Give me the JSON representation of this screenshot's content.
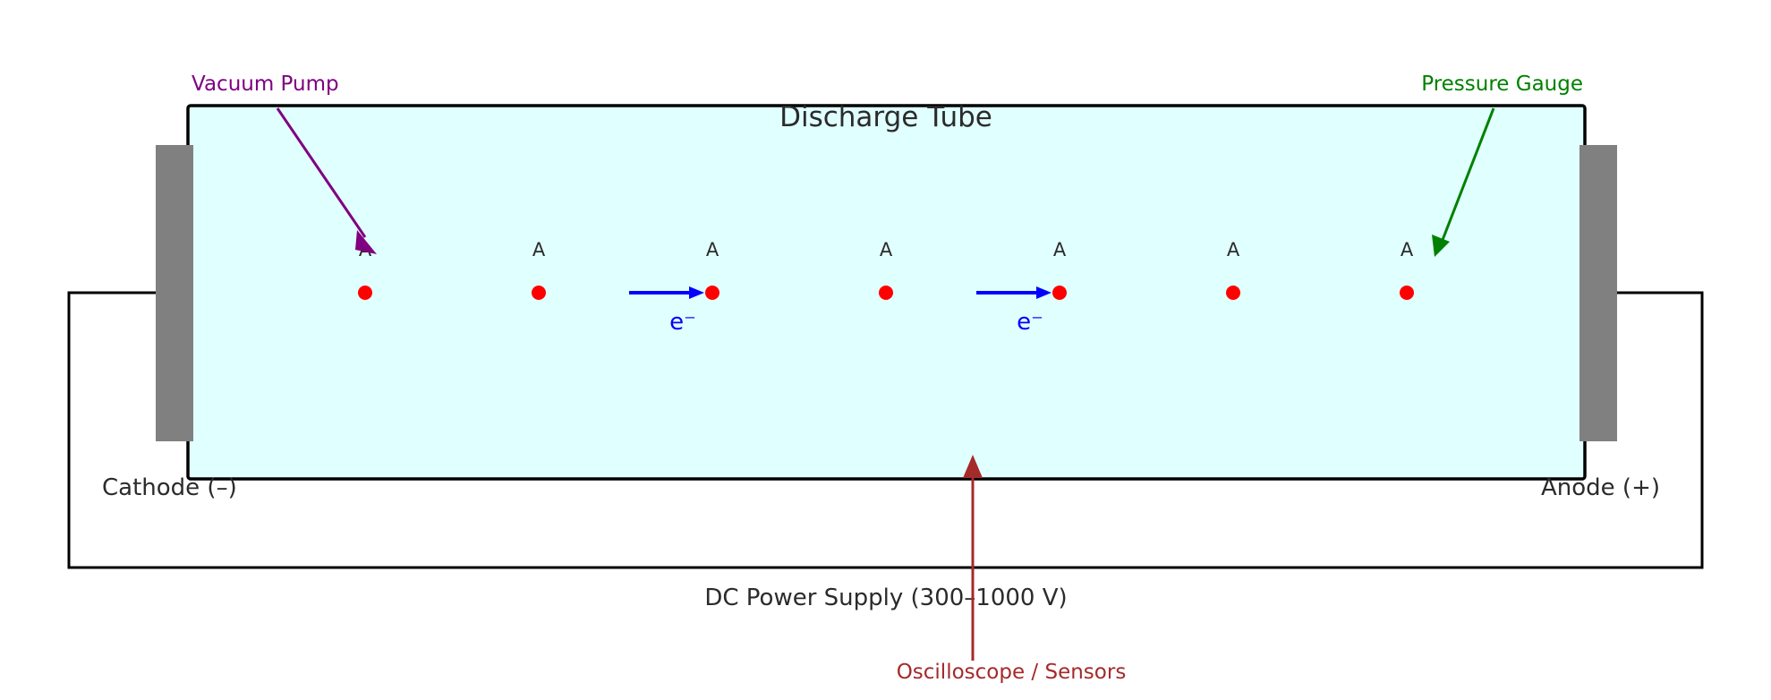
{
  "title": "Discharge Tube",
  "electrodes": {
    "cathode_label": "Cathode (–)",
    "anode_label": "Anode (+)"
  },
  "power_supply_label": "DC Power Supply (300–1000 V)",
  "atom_label": "A",
  "atom_count": 7,
  "electron_label": "e⁻",
  "annotations": {
    "vacuum_pump": "Vacuum Pump",
    "pressure_gauge": "Pressure Gauge",
    "oscilloscope": "Oscilloscope / Sensors"
  },
  "colors": {
    "tube_fill": "#e0ffff",
    "electrode": "#808080",
    "atom": "#ff0000",
    "electron": "#0000ff",
    "vacuum_pump": "#800080",
    "pressure_gauge": "#008000",
    "oscilloscope": "#a52a2a",
    "outline": "#000000",
    "text": "#2b2b2b"
  }
}
